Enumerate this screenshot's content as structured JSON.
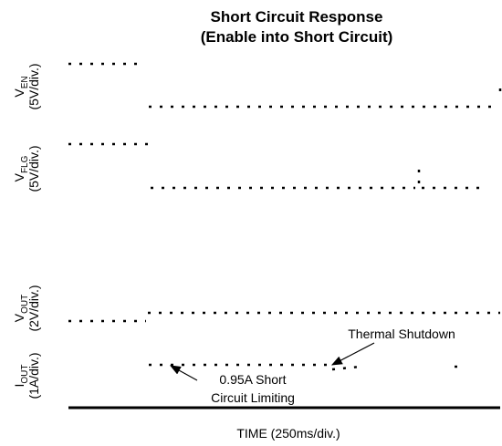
{
  "title": [
    "Short Circuit Response",
    "(Enable into Short Circuit)"
  ],
  "channels": [
    {
      "symbol": "V",
      "subscript": "EN",
      "scale": "(5V/div.)"
    },
    {
      "symbol": "V",
      "subscript": "FLG",
      "scale": "(5V/div.)"
    },
    {
      "symbol": "V",
      "subscript": "OUT",
      "scale": "(2V/div.)"
    },
    {
      "symbol": "I",
      "subscript": "OUT",
      "scale": "(1A/div.)"
    }
  ],
  "x_label": "TIME (250ms/div.)",
  "annotations": [
    "Thermal Shutdown",
    "0.95A Short",
    "Circuit Limiting"
  ]
}
